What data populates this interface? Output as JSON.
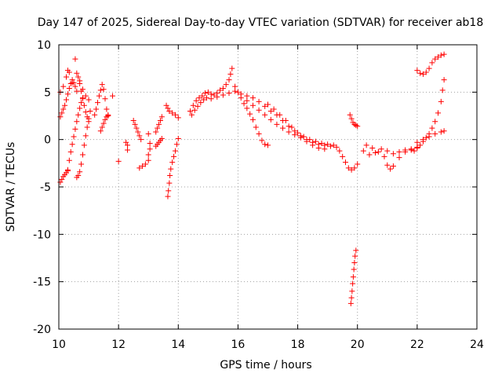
{
  "chart_data": {
    "type": "scatter",
    "title": "Day 147 of 2025, Sidereal Day-to-day VTEC variation (SDTVAR) for receiver ab18",
    "xlabel": "GPS time / hours",
    "ylabel": "SDTVAR / TECUs",
    "xlim": [
      10,
      24
    ],
    "ylim": [
      -20,
      10
    ],
    "xticks": [
      10,
      12,
      14,
      16,
      18,
      20,
      22,
      24
    ],
    "yticks": [
      -20,
      -15,
      -10,
      -5,
      0,
      5,
      10
    ],
    "grid": true,
    "marker": "plus",
    "color": "#ff0000",
    "segments": [
      {
        "name": "early-low",
        "points": [
          [
            10.05,
            -4.5
          ],
          [
            10.1,
            -4.2
          ],
          [
            10.15,
            -3.9
          ],
          [
            10.2,
            -3.7
          ],
          [
            10.25,
            -3.5
          ],
          [
            10.3,
            -3.3
          ]
        ]
      },
      {
        "name": "early-cluster-a",
        "points": [
          [
            10.05,
            2.4
          ],
          [
            10.1,
            2.8
          ],
          [
            10.15,
            3.2
          ],
          [
            10.2,
            3.6
          ],
          [
            10.25,
            4.2
          ],
          [
            10.3,
            4.8
          ],
          [
            10.35,
            5.4
          ],
          [
            10.4,
            5.9
          ],
          [
            10.45,
            6.3
          ],
          [
            10.5,
            6.0
          ],
          [
            10.55,
            5.6
          ],
          [
            10.6,
            5.1
          ]
        ]
      },
      {
        "name": "early-cluster-b",
        "points": [
          [
            10.05,
            5.0
          ],
          [
            10.15,
            5.6
          ],
          [
            10.25,
            6.6
          ],
          [
            10.3,
            7.3
          ],
          [
            10.35,
            7.1
          ],
          [
            10.45,
            6.0
          ],
          [
            10.55,
            8.5
          ],
          [
            10.6,
            7.0
          ],
          [
            10.7,
            6.2
          ],
          [
            10.8,
            5.3
          ],
          [
            10.9,
            4.6
          ],
          [
            11.0,
            4.2
          ]
        ]
      },
      {
        "name": "early-ramp-a",
        "points": [
          [
            10.3,
            -3.2
          ],
          [
            10.35,
            -2.2
          ],
          [
            10.4,
            -1.3
          ],
          [
            10.45,
            -0.5
          ],
          [
            10.5,
            0.3
          ],
          [
            10.55,
            1.1
          ],
          [
            10.6,
            1.9
          ],
          [
            10.65,
            2.6
          ],
          [
            10.7,
            3.3
          ],
          [
            10.75,
            3.9
          ],
          [
            10.8,
            4.4
          ]
        ]
      },
      {
        "name": "early-ramp-b",
        "points": [
          [
            10.6,
            -4.0
          ],
          [
            10.65,
            -3.8
          ],
          [
            10.7,
            -3.4
          ],
          [
            10.75,
            -2.6
          ],
          [
            10.8,
            -1.6
          ],
          [
            10.85,
            -0.6
          ],
          [
            10.9,
            0.4
          ],
          [
            10.95,
            1.3
          ],
          [
            11.0,
            2.2
          ],
          [
            11.05,
            3.0
          ]
        ]
      },
      {
        "name": "early-upper",
        "points": [
          [
            10.65,
            6.6
          ],
          [
            10.7,
            5.9
          ],
          [
            10.75,
            5.1
          ],
          [
            10.8,
            4.3
          ],
          [
            10.85,
            3.6
          ],
          [
            10.9,
            2.9
          ],
          [
            10.95,
            2.4
          ],
          [
            11.0,
            1.9
          ]
        ]
      },
      {
        "name": "eleven-cluster",
        "points": [
          [
            11.2,
            2.6
          ],
          [
            11.25,
            3.2
          ],
          [
            11.3,
            3.9
          ],
          [
            11.35,
            4.6
          ],
          [
            11.4,
            5.2
          ],
          [
            11.45,
            5.8
          ],
          [
            11.5,
            5.3
          ],
          [
            11.55,
            4.3
          ],
          [
            11.6,
            3.2
          ],
          [
            11.65,
            2.5
          ]
        ]
      },
      {
        "name": "eleven-lower",
        "points": [
          [
            11.4,
            0.9
          ],
          [
            11.45,
            1.3
          ],
          [
            11.5,
            1.7
          ],
          [
            11.55,
            2.1
          ],
          [
            11.6,
            2.4
          ],
          [
            11.65,
            2.6
          ]
        ]
      },
      {
        "name": "eleven-isolated",
        "points": [
          [
            11.8,
            4.6
          ]
        ]
      },
      {
        "name": "twelve-isolated",
        "points": [
          [
            12.0,
            -2.3
          ],
          [
            12.25,
            -0.3
          ],
          [
            12.3,
            -0.6
          ],
          [
            12.3,
            -1.1
          ]
        ]
      },
      {
        "name": "twelve-five-a",
        "points": [
          [
            12.5,
            2.0
          ],
          [
            12.55,
            1.6
          ],
          [
            12.6,
            1.2
          ],
          [
            12.65,
            0.8
          ],
          [
            12.7,
            0.4
          ],
          [
            12.75,
            0.0
          ]
        ]
      },
      {
        "name": "twelve-five-b",
        "points": [
          [
            12.7,
            -3.0
          ],
          [
            12.8,
            -2.8
          ],
          [
            12.9,
            -2.6
          ],
          [
            13.0,
            -2.2
          ],
          [
            13.0,
            -1.6
          ],
          [
            13.05,
            -1.0
          ],
          [
            13.05,
            -0.4
          ],
          [
            13.0,
            0.6
          ]
        ]
      },
      {
        "name": "thirteen-a",
        "points": [
          [
            13.25,
            0.8
          ],
          [
            13.3,
            1.2
          ],
          [
            13.35,
            1.6
          ],
          [
            13.4,
            2.0
          ],
          [
            13.45,
            2.4
          ]
        ]
      },
      {
        "name": "thirteen-b",
        "points": [
          [
            13.25,
            -0.7
          ],
          [
            13.3,
            -0.5
          ],
          [
            13.35,
            -0.3
          ],
          [
            13.4,
            -0.1
          ],
          [
            13.45,
            0.1
          ]
        ]
      },
      {
        "name": "thirteen-drop",
        "points": [
          [
            13.65,
            -6.0
          ],
          [
            13.67,
            -5.4
          ],
          [
            13.7,
            -4.6
          ],
          [
            13.72,
            -3.8
          ],
          [
            13.75,
            -3.1
          ],
          [
            13.8,
            -2.4
          ],
          [
            13.85,
            -1.8
          ],
          [
            13.9,
            -1.2
          ],
          [
            13.95,
            -0.5
          ],
          [
            14.0,
            0.1
          ]
        ]
      },
      {
        "name": "thirteen-upper",
        "points": [
          [
            13.6,
            3.6
          ],
          [
            13.65,
            3.3
          ],
          [
            13.7,
            3.0
          ],
          [
            13.8,
            2.8
          ],
          [
            13.9,
            2.6
          ],
          [
            14.0,
            2.3
          ]
        ]
      },
      {
        "name": "fourteen-rise",
        "points": [
          [
            14.4,
            3.0
          ],
          [
            14.5,
            3.6
          ],
          [
            14.6,
            4.1
          ],
          [
            14.7,
            4.4
          ],
          [
            14.8,
            4.6
          ],
          [
            14.9,
            4.9
          ],
          [
            15.0,
            5.0
          ],
          [
            15.1,
            4.8
          ],
          [
            15.2,
            4.7
          ],
          [
            15.3,
            4.9
          ],
          [
            15.4,
            5.2
          ],
          [
            15.5,
            5.4
          ],
          [
            15.6,
            5.8
          ],
          [
            15.7,
            6.3
          ],
          [
            15.75,
            6.9
          ],
          [
            15.8,
            7.5
          ]
        ]
      },
      {
        "name": "fourteen-rise-b",
        "points": [
          [
            14.45,
            2.6
          ],
          [
            14.55,
            3.1
          ],
          [
            14.65,
            3.5
          ],
          [
            14.75,
            3.9
          ],
          [
            14.85,
            4.2
          ],
          [
            14.95,
            4.4
          ],
          [
            15.1,
            4.3
          ],
          [
            15.3,
            4.5
          ],
          [
            15.5,
            4.7
          ],
          [
            15.7,
            4.9
          ],
          [
            15.9,
            5.1
          ]
        ]
      },
      {
        "name": "sixteen-decline-a",
        "points": [
          [
            15.9,
            5.6
          ],
          [
            16.0,
            5.0
          ],
          [
            16.1,
            4.4
          ],
          [
            16.2,
            3.8
          ],
          [
            16.3,
            3.3
          ],
          [
            16.4,
            2.7
          ],
          [
            16.5,
            2.1
          ],
          [
            16.6,
            1.3
          ],
          [
            16.7,
            0.6
          ],
          [
            16.8,
            -0.1
          ],
          [
            16.9,
            -0.5
          ],
          [
            17.0,
            -0.6
          ]
        ]
      },
      {
        "name": "sixteen-decline-b",
        "points": [
          [
            16.1,
            4.8
          ],
          [
            16.3,
            4.6
          ],
          [
            16.5,
            4.4
          ],
          [
            16.7,
            4.0
          ],
          [
            16.9,
            3.5
          ],
          [
            17.1,
            3.0
          ],
          [
            17.3,
            2.6
          ],
          [
            17.5,
            2.0
          ],
          [
            17.7,
            1.4
          ],
          [
            17.9,
            0.9
          ],
          [
            18.1,
            0.4
          ],
          [
            18.3,
            0.0
          ],
          [
            18.5,
            -0.3
          ],
          [
            18.7,
            -0.5
          ],
          [
            18.9,
            -0.6
          ],
          [
            19.1,
            -0.7
          ]
        ]
      },
      {
        "name": "sixteen-decline-c",
        "points": [
          [
            16.3,
            4.1
          ],
          [
            16.5,
            3.6
          ],
          [
            16.7,
            3.1
          ],
          [
            16.9,
            2.6
          ],
          [
            17.1,
            2.1
          ],
          [
            17.3,
            1.6
          ],
          [
            17.5,
            1.2
          ],
          [
            17.7,
            0.8
          ],
          [
            17.9,
            0.5
          ],
          [
            18.1,
            0.2
          ],
          [
            18.3,
            -0.2
          ],
          [
            18.5,
            -0.6
          ],
          [
            18.7,
            -0.9
          ],
          [
            18.9,
            -1.0
          ]
        ]
      },
      {
        "name": "seventeen-loop",
        "points": [
          [
            17.0,
            3.7
          ],
          [
            17.2,
            3.2
          ],
          [
            17.4,
            2.6
          ],
          [
            17.6,
            2.0
          ],
          [
            17.8,
            1.3
          ],
          [
            18.0,
            0.7
          ],
          [
            18.2,
            0.3
          ],
          [
            18.4,
            0.0
          ],
          [
            18.6,
            -0.2
          ],
          [
            18.8,
            -0.4
          ],
          [
            19.0,
            -0.5
          ],
          [
            19.2,
            -0.6
          ]
        ]
      },
      {
        "name": "nineteen-tail",
        "points": [
          [
            19.3,
            -0.8
          ],
          [
            19.4,
            -1.2
          ],
          [
            19.5,
            -1.8
          ],
          [
            19.6,
            -2.4
          ],
          [
            19.7,
            -3.0
          ],
          [
            19.8,
            -3.2
          ],
          [
            19.9,
            -3.0
          ],
          [
            20.0,
            -2.6
          ]
        ]
      },
      {
        "name": "nineteen-plunge",
        "points": [
          [
            19.78,
            -17.3
          ],
          [
            19.8,
            -16.7
          ],
          [
            19.82,
            -16.0
          ],
          [
            19.84,
            -15.2
          ],
          [
            19.86,
            -14.5
          ],
          [
            19.88,
            -13.7
          ],
          [
            19.9,
            -13.0
          ],
          [
            19.92,
            -12.3
          ],
          [
            19.95,
            -11.7
          ]
        ]
      },
      {
        "name": "twenty-upper",
        "points": [
          [
            19.75,
            2.6
          ],
          [
            19.8,
            2.2
          ],
          [
            19.85,
            1.8
          ],
          [
            19.9,
            1.6
          ],
          [
            19.95,
            1.5
          ],
          [
            20.0,
            1.4
          ]
        ]
      },
      {
        "name": "twenty-band",
        "points": [
          [
            20.2,
            -1.2
          ],
          [
            20.4,
            -1.6
          ],
          [
            20.6,
            -1.4
          ],
          [
            20.8,
            -1.0
          ],
          [
            21.0,
            -1.2
          ],
          [
            21.2,
            -1.5
          ],
          [
            21.4,
            -1.3
          ],
          [
            21.6,
            -1.1
          ],
          [
            21.8,
            -1.0
          ],
          [
            22.0,
            -0.8
          ]
        ]
      },
      {
        "name": "twenty-band-b",
        "points": [
          [
            20.3,
            -0.6
          ],
          [
            20.5,
            -0.9
          ],
          [
            20.7,
            -1.3
          ],
          [
            20.9,
            -1.8
          ],
          [
            21.0,
            -2.7
          ],
          [
            21.1,
            -3.1
          ],
          [
            21.2,
            -2.8
          ],
          [
            21.4,
            -1.9
          ],
          [
            21.6,
            -1.3
          ],
          [
            21.8,
            -1.1
          ]
        ]
      },
      {
        "name": "twentytwo-rise-a",
        "points": [
          [
            21.9,
            -1.2
          ],
          [
            22.0,
            -0.9
          ],
          [
            22.1,
            -0.6
          ],
          [
            22.2,
            -0.2
          ],
          [
            22.3,
            0.2
          ],
          [
            22.4,
            0.6
          ],
          [
            22.5,
            1.2
          ],
          [
            22.6,
            1.9
          ],
          [
            22.7,
            2.8
          ],
          [
            22.8,
            4.0
          ],
          [
            22.85,
            5.2
          ],
          [
            22.9,
            6.3
          ]
        ]
      },
      {
        "name": "twentytwo-rise-b",
        "points": [
          [
            22.0,
            -0.3
          ],
          [
            22.2,
            0.0
          ],
          [
            22.4,
            0.3
          ],
          [
            22.6,
            0.6
          ],
          [
            22.8,
            0.8
          ],
          [
            22.9,
            0.9
          ]
        ]
      },
      {
        "name": "twentytwo-upper",
        "points": [
          [
            22.0,
            7.3
          ],
          [
            22.1,
            7.0
          ],
          [
            22.2,
            6.9
          ],
          [
            22.3,
            7.1
          ],
          [
            22.4,
            7.5
          ],
          [
            22.5,
            8.1
          ],
          [
            22.6,
            8.5
          ],
          [
            22.7,
            8.7
          ],
          [
            22.8,
            8.9
          ],
          [
            22.9,
            9.0
          ]
        ]
      }
    ]
  }
}
